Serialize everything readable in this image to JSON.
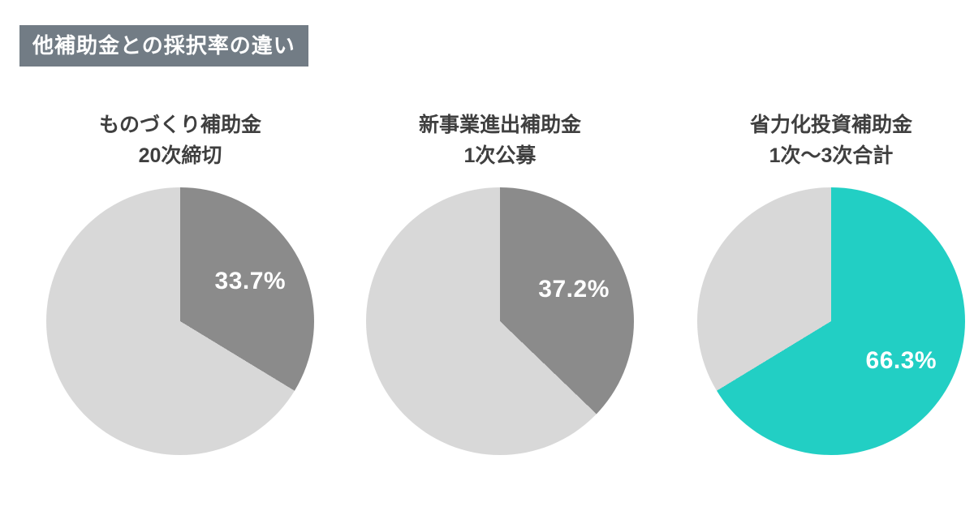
{
  "header": {
    "title": "他補助金との採択率の違い",
    "badge_bg": "#727c85",
    "badge_text_color": "#ffffff"
  },
  "colors": {
    "background": "#ffffff",
    "remainder_gray": "#d8d8d8",
    "slice_gray": "#8b8b8b",
    "slice_teal": "#22cfc4",
    "heading_text": "#3f3f3f",
    "value_text": "#ffffff"
  },
  "chart_data": {
    "type": "pie",
    "title": "他補助金との採択率の違い",
    "unit": "%",
    "legend": "none",
    "labels_inside": true,
    "start_angle": "12-oclock",
    "direction": "clockwise",
    "remainder_color": "#d8d8d8",
    "pies": [
      {
        "name": "ものづくり補助金",
        "round": "20次締切",
        "value": 33.7,
        "value_label": "33.7%",
        "slice_color": "#8b8b8b"
      },
      {
        "name": "新事業進出補助金",
        "round": "1次公募",
        "value": 37.2,
        "value_label": "37.2%",
        "slice_color": "#8b8b8b"
      },
      {
        "name": "省力化投資補助金",
        "round": "1次〜3次合計",
        "value": 66.3,
        "value_label": "66.3%",
        "slice_color": "#22cfc4"
      }
    ]
  }
}
